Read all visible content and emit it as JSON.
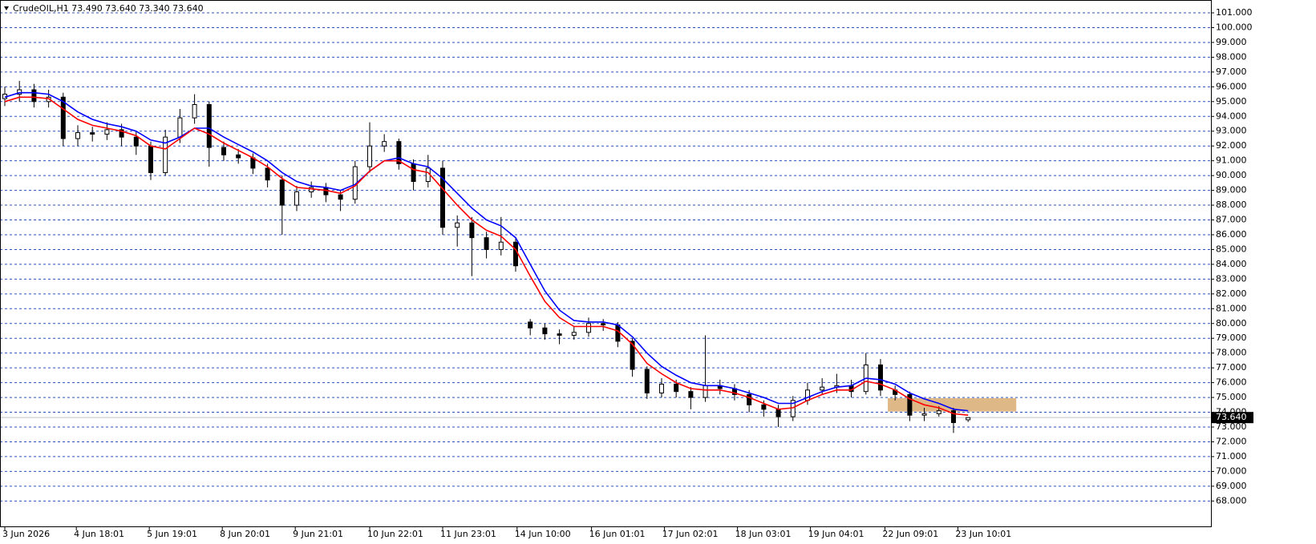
{
  "chart_data": {
    "type": "candlestick",
    "title": "CrudeOIL,H1  73.490 73.640 73.340 73.640",
    "ohlc": {
      "open": [
        95.2,
        95.5,
        95.8,
        95.0,
        95.3,
        92.5,
        92.9,
        92.8,
        93.1,
        92.6,
        92.0,
        90.2,
        92.6,
        93.9,
        94.8,
        91.9,
        91.4,
        91.2,
        90.5,
        89.7,
        88.0,
        88.9,
        89.2,
        88.7,
        88.4,
        90.6,
        92.0,
        92.3,
        90.8,
        89.6,
        90.5,
        86.5,
        86.8,
        85.8,
        85.0,
        85.5,
        80.1,
        79.7,
        79.3,
        79.2,
        79.4,
        80.0,
        79.9,
        78.8,
        76.9,
        75.3,
        75.9,
        75.4,
        75.0,
        75.8,
        75.6,
        75.2,
        74.5,
        74.2,
        73.7,
        74.8,
        75.5,
        75.7,
        75.8,
        75.4,
        77.2,
        75.5,
        75.2,
        73.8,
        73.9,
        74.1,
        73.49
      ],
      "high": [
        96.0,
        96.4,
        96.2,
        95.8,
        95.6,
        93.4,
        93.3,
        93.6,
        93.5,
        93.0,
        92.3,
        93.1,
        94.5,
        95.5,
        95.0,
        92.3,
        91.8,
        91.5,
        90.8,
        90.0,
        89.3,
        89.6,
        89.5,
        89.0,
        91.0,
        93.6,
        92.8,
        92.5,
        91.1,
        91.4,
        91.0,
        87.3,
        87.2,
        86.2,
        87.2,
        85.8,
        80.3,
        80.0,
        79.6,
        79.8,
        80.4,
        80.3,
        80.1,
        79.0,
        77.1,
        76.3,
        76.2,
        75.7,
        79.2,
        76.2,
        75.9,
        75.5,
        74.8,
        74.5,
        75.1,
        76.0,
        76.3,
        76.6,
        76.2,
        78.0,
        77.6,
        75.8,
        75.4,
        74.3,
        74.4,
        74.3,
        73.64
      ],
      "low": [
        94.7,
        95.0,
        94.6,
        94.6,
        92.0,
        92.0,
        92.3,
        92.4,
        92.0,
        91.4,
        89.7,
        90.0,
        92.2,
        93.5,
        90.6,
        91.0,
        90.8,
        90.1,
        89.2,
        86.0,
        87.6,
        88.5,
        88.2,
        87.6,
        88.1,
        90.2,
        91.6,
        90.4,
        89.0,
        89.2,
        86.0,
        85.2,
        83.2,
        84.4,
        84.6,
        83.5,
        79.2,
        78.9,
        78.6,
        78.9,
        79.1,
        79.5,
        78.4,
        76.4,
        74.9,
        75.0,
        75.0,
        74.2,
        74.7,
        75.2,
        74.8,
        74.0,
        73.7,
        73.0,
        73.4,
        74.5,
        75.2,
        75.3,
        75.0,
        75.2,
        75.1,
        74.8,
        73.4,
        73.4,
        73.7,
        72.6,
        73.34
      ],
      "close": [
        95.5,
        95.8,
        95.0,
        95.3,
        92.5,
        92.9,
        92.8,
        93.1,
        92.6,
        92.0,
        90.2,
        92.6,
        93.9,
        94.8,
        91.9,
        91.4,
        91.2,
        90.5,
        89.7,
        88.0,
        88.9,
        89.2,
        88.7,
        88.4,
        90.6,
        92.0,
        92.3,
        90.8,
        89.6,
        90.5,
        86.5,
        86.8,
        85.8,
        85.0,
        85.5,
        83.9,
        79.7,
        79.3,
        79.2,
        79.4,
        80.0,
        79.9,
        78.8,
        76.9,
        75.3,
        75.9,
        75.4,
        75.0,
        75.8,
        75.6,
        75.2,
        74.5,
        74.2,
        73.7,
        74.8,
        75.5,
        75.7,
        75.8,
        75.4,
        77.2,
        75.5,
        75.2,
        73.8,
        73.9,
        74.1,
        73.3,
        73.64
      ]
    },
    "up_color": "#ffffff",
    "down_color": "#000000",
    "ma": [
      {
        "color": "#0000ff",
        "values": [
          95.3,
          95.6,
          95.6,
          95.5,
          95.0,
          94.3,
          93.8,
          93.5,
          93.3,
          93.0,
          92.4,
          92.2,
          92.6,
          93.2,
          93.2,
          92.6,
          92.1,
          91.6,
          91.0,
          90.2,
          89.6,
          89.3,
          89.2,
          89.0,
          89.4,
          90.3,
          91.0,
          91.2,
          90.8,
          90.6,
          89.8,
          88.8,
          87.8,
          87.0,
          86.6,
          85.8,
          84.0,
          82.2,
          80.9,
          80.2,
          80.1,
          80.1,
          79.9,
          79.1,
          78.0,
          77.1,
          76.5,
          76.0,
          75.8,
          75.8,
          75.6,
          75.3,
          75.0,
          74.6,
          74.6,
          75.0,
          75.4,
          75.7,
          75.8,
          76.3,
          76.2,
          75.9,
          75.3,
          74.9,
          74.6,
          74.2,
          74.1
        ]
      },
      {
        "color": "#ff0000",
        "values": [
          95.0,
          95.3,
          95.3,
          95.2,
          94.5,
          93.8,
          93.4,
          93.2,
          93.0,
          92.7,
          92.0,
          91.8,
          92.5,
          93.2,
          92.8,
          92.2,
          91.7,
          91.2,
          90.6,
          89.8,
          89.2,
          89.1,
          89.0,
          88.8,
          89.3,
          90.3,
          91.0,
          91.0,
          90.4,
          90.2,
          89.1,
          88.0,
          87.0,
          86.3,
          85.9,
          85.0,
          83.2,
          81.5,
          80.4,
          79.8,
          79.8,
          79.8,
          79.5,
          78.6,
          77.3,
          76.6,
          76.0,
          75.6,
          75.5,
          75.5,
          75.3,
          75.0,
          74.6,
          74.2,
          74.3,
          74.8,
          75.2,
          75.5,
          75.5,
          76.1,
          75.9,
          75.5,
          74.9,
          74.5,
          74.3,
          73.9,
          73.8
        ]
      }
    ],
    "zone": {
      "x": [
        60.5,
        69.3
      ],
      "y": [
        74.05,
        74.95
      ],
      "color": "#deb887"
    },
    "last_price": {
      "value": 73.64,
      "label": "73.640"
    },
    "xlim": [
      -0.33,
      82.64
    ],
    "ylim": [
      66.23,
      101.76
    ],
    "grid": true,
    "grid_color": "#2a52be",
    "yticks": [
      {
        "value": 68,
        "label": "68.000"
      },
      {
        "value": 69,
        "label": "69.000"
      },
      {
        "value": 70,
        "label": "70.000"
      },
      {
        "value": 71,
        "label": "71.000"
      },
      {
        "value": 72,
        "label": "72.000"
      },
      {
        "value": 73,
        "label": "73.000"
      },
      {
        "value": 74,
        "label": "74.000"
      },
      {
        "value": 75,
        "label": "75.000"
      },
      {
        "value": 76,
        "label": "76.000"
      },
      {
        "value": 77,
        "label": "77.000"
      },
      {
        "value": 78,
        "label": "78.000"
      },
      {
        "value": 79,
        "label": "79.000"
      },
      {
        "value": 80,
        "label": "80.000"
      },
      {
        "value": 81,
        "label": "81.000"
      },
      {
        "value": 82,
        "label": "82.000"
      },
      {
        "value": 83,
        "label": "83.000"
      },
      {
        "value": 84,
        "label": "84.000"
      },
      {
        "value": 85,
        "label": "85.000"
      },
      {
        "value": 86,
        "label": "86.000"
      },
      {
        "value": 87,
        "label": "87.000"
      },
      {
        "value": 88,
        "label": "88.000"
      },
      {
        "value": 89,
        "label": "89.000"
      },
      {
        "value": 90,
        "label": "90.000"
      },
      {
        "value": 91,
        "label": "91.000"
      },
      {
        "value": 92,
        "label": "92.000"
      },
      {
        "value": 93,
        "label": "93.000"
      },
      {
        "value": 94,
        "label": "94.000"
      },
      {
        "value": 95,
        "label": "95.000"
      },
      {
        "value": 96,
        "label": "96.000"
      },
      {
        "value": 97,
        "label": "97.000"
      },
      {
        "value": 98,
        "label": "98.000"
      },
      {
        "value": 99,
        "label": "99.000"
      },
      {
        "value": 100,
        "label": "100.000"
      },
      {
        "value": 101,
        "label": "101.000"
      }
    ],
    "xticks": [
      {
        "value": 0,
        "label": "3 Jun 2026"
      },
      {
        "value": 4.9,
        "label": "4 Jun 18:01"
      },
      {
        "value": 9.9,
        "label": "5 Jun 19:01"
      },
      {
        "value": 14.9,
        "label": "8 Jun 20:01"
      },
      {
        "value": 19.9,
        "label": "9 Jun 21:01"
      },
      {
        "value": 25,
        "label": "10 Jun 22:01"
      },
      {
        "value": 30,
        "label": "11 Jun 23:01"
      },
      {
        "value": 35.1,
        "label": "14 Jun 10:00"
      },
      {
        "value": 40.2,
        "label": "16 Jun 01:01"
      },
      {
        "value": 45.2,
        "label": "17 Jun 02:01"
      },
      {
        "value": 50.2,
        "label": "18 Jun 03:01"
      },
      {
        "value": 55.2,
        "label": "19 Jun 04:01"
      },
      {
        "value": 60.3,
        "label": "22 Jun 09:01"
      },
      {
        "value": 65.3,
        "label": "23 Jun 10:01"
      }
    ]
  }
}
